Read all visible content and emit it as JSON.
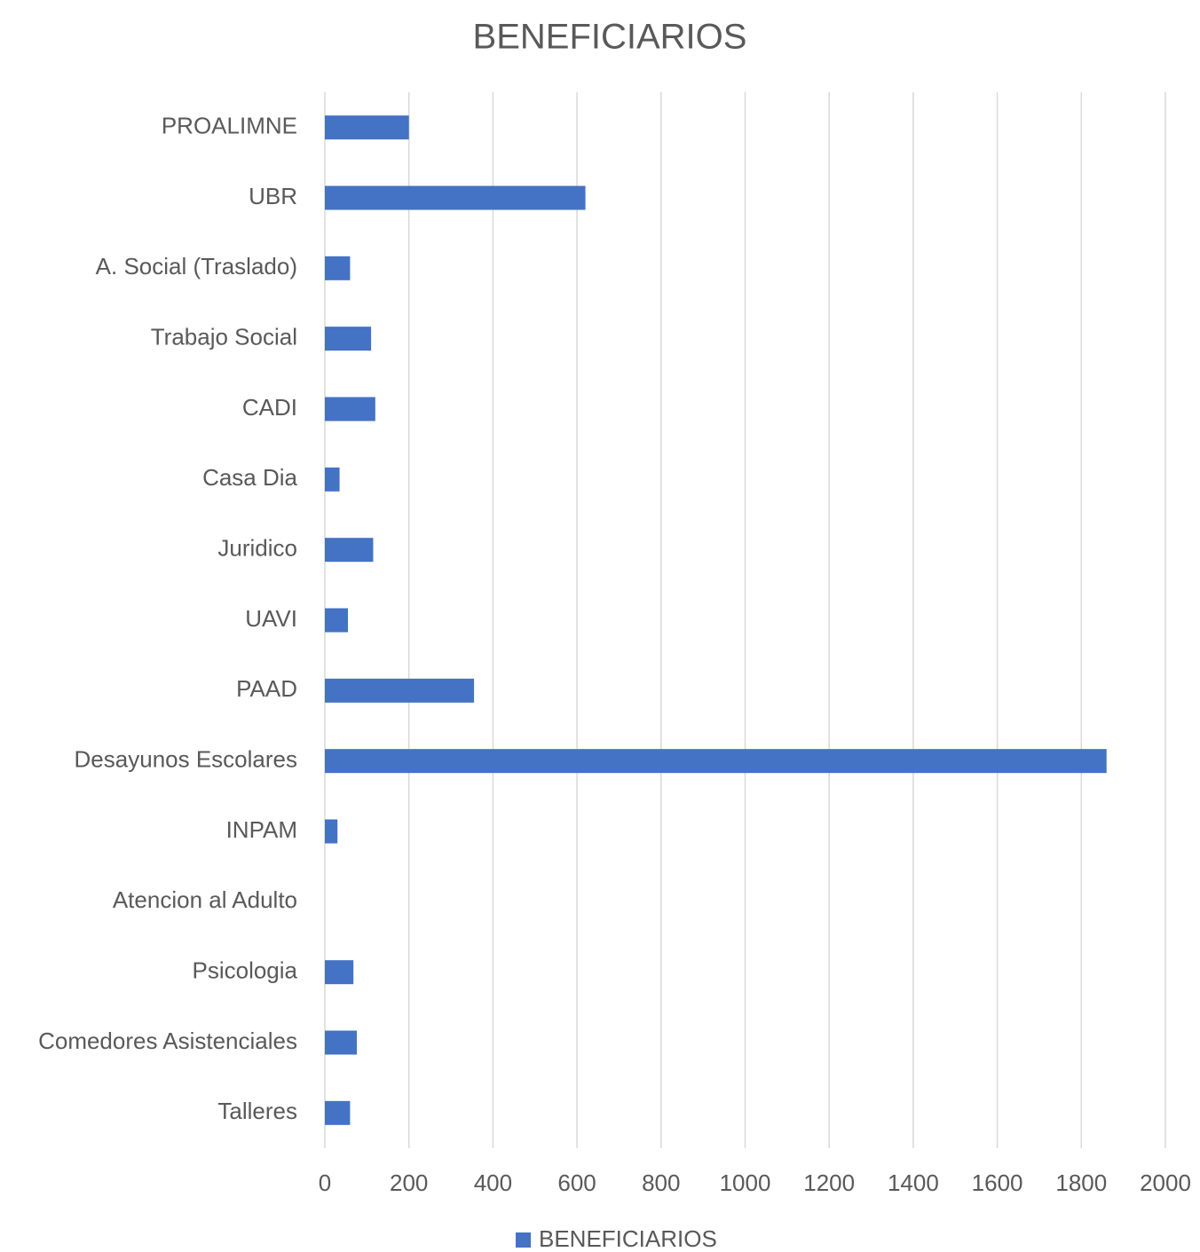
{
  "chart_data": {
    "type": "barh",
    "title": "BENEFICIARIOS",
    "categories": [
      "PROALIMNE",
      "UBR",
      "A. Social (Traslado)",
      "Trabajo Social",
      "CADI",
      "Casa Dia",
      "Juridico",
      "UAVI",
      "PAAD",
      "Desayunos Escolares",
      "INPAM",
      "Atencion al Adulto",
      "Psicologia",
      "Comedores Asistenciales",
      "Talleres"
    ],
    "series": [
      {
        "name": "BENEFICIARIOS",
        "color": "#4472c4",
        "values": [
          200,
          620,
          60,
          110,
          120,
          35,
          115,
          55,
          355,
          1860,
          30,
          0,
          68,
          76,
          60
        ]
      }
    ],
    "xlim": [
      0,
      2000
    ],
    "xticks": [
      0,
      200,
      400,
      600,
      800,
      1000,
      1200,
      1400,
      1600,
      1800,
      2000
    ],
    "grid": true,
    "legend": "bottom"
  }
}
